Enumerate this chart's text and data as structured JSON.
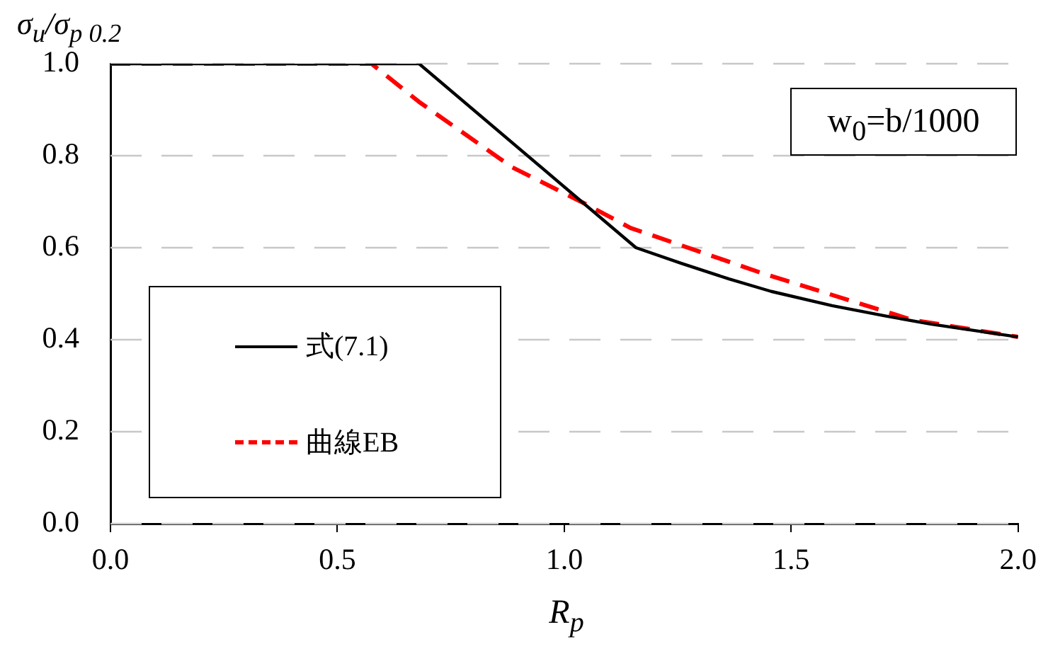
{
  "chart_data": {
    "type": "line",
    "xlabel": "R$_{p}$",
    "ylabel": "σ$_{u}$/σ$_{p 0.2}$",
    "xlim": [
      0,
      2
    ],
    "xticks": [
      {
        "value": 0,
        "label": "0.0"
      },
      {
        "value": 0.5,
        "label": "0.5"
      },
      {
        "value": 1,
        "label": "1.0"
      },
      {
        "value": 1.5,
        "label": "1.5"
      },
      {
        "value": 2,
        "label": "2.0"
      }
    ],
    "ylim": [
      0,
      1
    ],
    "yticks": [
      {
        "value": 0,
        "label": "0.0"
      },
      {
        "value": 0.2,
        "label": "0.2"
      },
      {
        "value": 0.4,
        "label": "0.4"
      },
      {
        "value": 0.6,
        "label": "0.6"
      },
      {
        "value": 0.8,
        "label": "0.8"
      },
      {
        "value": 1,
        "label": "1.0"
      }
    ],
    "grid": "y",
    "legend": "bottom left",
    "marker": "none",
    "annotations": [
      "w$_{0}$=b/1000"
    ],
    "series": [
      {
        "name": "式(7.1)",
        "color": "#000000",
        "line_style": "solid",
        "x": [
          0,
          0.68,
          1.158,
          1.258,
          1.363,
          1.456,
          1.59,
          1.705,
          1.807,
          2.0
        ],
        "values": [
          1,
          1,
          0.6,
          0.566,
          0.532,
          0.505,
          0.474,
          0.452,
          0.434,
          0.406
        ]
      },
      {
        "name": "曲線EB",
        "color": "#ff0000",
        "line_style": "dashed",
        "x": [
          0,
          0.575,
          0.68,
          0.885,
          1.047,
          1.146,
          1.435,
          1.767,
          2.0
        ],
        "values": [
          1,
          1,
          0.917,
          0.775,
          0.695,
          0.643,
          0.545,
          0.443,
          0.406
        ]
      }
    ]
  }
}
